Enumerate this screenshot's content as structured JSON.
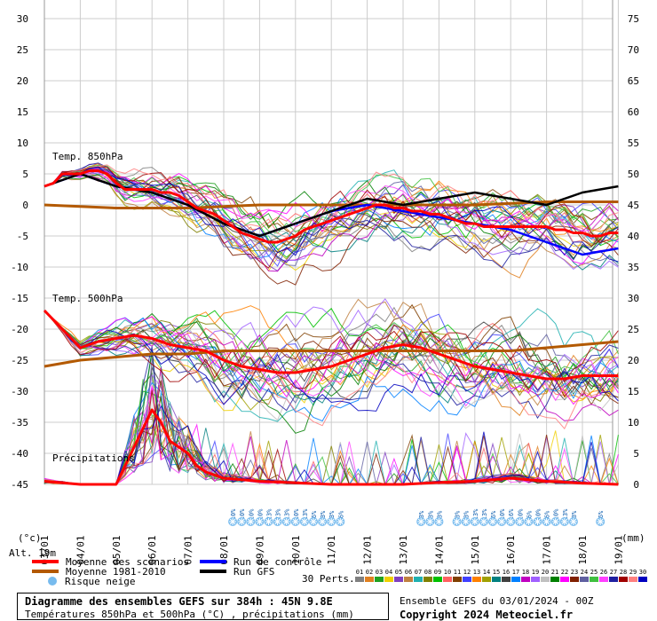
{
  "chart_data": {
    "type": "line",
    "x_ticks": [
      "03/01",
      "04/01",
      "05/01",
      "06/01",
      "07/01",
      "08/01",
      "09/01",
      "10/01",
      "11/01",
      "12/01",
      "13/01",
      "14/01",
      "15/01",
      "16/01",
      "17/01",
      "18/01",
      "19/01"
    ],
    "y_left_ticks": [
      "30",
      "25",
      "20",
      "15",
      "10",
      "5",
      "0",
      "-5",
      "-10",
      "-15",
      "-20",
      "-25",
      "-30",
      "-35",
      "-40",
      "-45"
    ],
    "y_right_ticks": [
      "75",
      "70",
      "65",
      "60",
      "55",
      "50",
      "45",
      "40",
      "35",
      "30",
      "25",
      "20",
      "15",
      "10",
      "5",
      "0"
    ],
    "ylim_left": [
      -45,
      30
    ],
    "ylim_right": [
      0,
      75
    ],
    "grid": true,
    "xlabel": "",
    "ylabel_left": "(°c)",
    "ylabel_right": "(mm)",
    "alt_label": "Alt. 19m",
    "panel_labels": {
      "t850": "Temp. 850hPa",
      "t500": "Temp. 500hPa",
      "precip": "Précipitations"
    },
    "snow_risk": [
      {
        "day": 5.25,
        "pct": "10%"
      },
      {
        "day": 5.5,
        "pct": "10%"
      },
      {
        "day": 5.75,
        "pct": "10%"
      },
      {
        "day": 6.0,
        "pct": "10%"
      },
      {
        "day": 6.25,
        "pct": "23%"
      },
      {
        "day": 6.5,
        "pct": "23%"
      },
      {
        "day": 6.75,
        "pct": "13%"
      },
      {
        "day": 7.0,
        "pct": "10%"
      },
      {
        "day": 7.25,
        "pct": "13%"
      },
      {
        "day": 7.5,
        "pct": "6%"
      },
      {
        "day": 7.75,
        "pct": "3%"
      },
      {
        "day": 8.0,
        "pct": "3%"
      },
      {
        "day": 8.25,
        "pct": "6%"
      },
      {
        "day": 10.5,
        "pct": "3%"
      },
      {
        "day": 10.75,
        "pct": "3%"
      },
      {
        "day": 11.0,
        "pct": "3%"
      },
      {
        "day": 11.5,
        "pct": "3%"
      },
      {
        "day": 11.75,
        "pct": "3%"
      },
      {
        "day": 12.0,
        "pct": "13%"
      },
      {
        "day": 12.25,
        "pct": "13%"
      },
      {
        "day": 12.5,
        "pct": "6%"
      },
      {
        "day": 12.75,
        "pct": "10%"
      },
      {
        "day": 13.0,
        "pct": "16%"
      },
      {
        "day": 13.25,
        "pct": "10%"
      },
      {
        "day": 13.5,
        "pct": "6%"
      },
      {
        "day": 13.75,
        "pct": "10%"
      },
      {
        "day": 14.0,
        "pct": "6%"
      },
      {
        "day": 14.25,
        "pct": "10%"
      },
      {
        "day": 14.5,
        "pct": "13%"
      },
      {
        "day": 14.75,
        "pct": "3%"
      },
      {
        "day": 15.5,
        "pct": "6%"
      }
    ],
    "series": [
      {
        "name": "Moyenne des scénarios",
        "color": "#ff0000",
        "panel": "t850",
        "x": [
          0,
          0.25,
          0.5,
          0.75,
          1,
          1.25,
          1.5,
          1.75,
          2,
          2.25,
          2.5,
          2.75,
          3,
          3.25,
          3.5,
          3.75,
          4,
          4.25,
          4.5,
          4.75,
          5,
          5.25,
          5.5,
          5.75,
          6,
          6.25,
          6.5,
          6.75,
          7,
          7.25,
          7.5,
          7.75,
          8,
          8.25,
          8.5,
          8.75,
          9,
          9.25,
          9.5,
          9.75,
          10,
          10.25,
          10.5,
          10.75,
          11,
          11.25,
          11.5,
          11.75,
          12,
          12.25,
          12.5,
          12.75,
          13,
          13.25,
          13.5,
          13.75,
          14,
          14.25,
          14.5,
          14.75,
          15,
          15.25,
          15.5,
          15.75,
          16
        ],
        "y": [
          3,
          3.5,
          5,
          5,
          5,
          5.5,
          5.5,
          5,
          3.5,
          2.5,
          2.5,
          2.5,
          2.5,
          2,
          2,
          1.5,
          0.5,
          -0.5,
          -1,
          -1.5,
          -2.5,
          -3.5,
          -4.5,
          -5,
          -5.5,
          -6,
          -6,
          -5.5,
          -5,
          -4,
          -3.5,
          -3,
          -2.5,
          -2,
          -1.5,
          -1,
          -0.5,
          0,
          0,
          -0.5,
          -0.5,
          -1,
          -1,
          -1.5,
          -1.5,
          -2,
          -2.5,
          -3,
          -3,
          -3.5,
          -3.5,
          -3.5,
          -3.5,
          -3.5,
          -3.5,
          -3.5,
          -3.5,
          -4,
          -4,
          -4.5,
          -4.5,
          -5,
          -5,
          -4.5,
          -4.5
        ]
      },
      {
        "name": "Moyenne 1981-2010",
        "color": "#b35900",
        "panel": "t850",
        "x": [
          0,
          2,
          4,
          6,
          8,
          10,
          12,
          14,
          16
        ],
        "y": [
          0,
          -0.5,
          -0.5,
          0,
          0,
          0,
          0,
          0.5,
          0.5
        ]
      },
      {
        "name": "Run de contrôle",
        "color": "#0000ff",
        "panel": "t850",
        "x": [
          0,
          1,
          2,
          3,
          4,
          5,
          6,
          7,
          8,
          9,
          10,
          11,
          12,
          13,
          14,
          15,
          16
        ],
        "y": [
          3,
          5,
          3,
          2,
          0,
          -3,
          -5,
          -3,
          -1,
          0,
          -1,
          -2,
          -3,
          -4,
          -6,
          -8,
          -7
        ]
      },
      {
        "name": "Run GFS",
        "color": "#000000",
        "panel": "t850",
        "x": [
          0,
          1,
          2,
          3,
          4,
          5,
          6,
          7,
          8,
          9,
          10,
          11,
          12,
          13,
          14,
          15,
          16
        ],
        "y": [
          3,
          5,
          3,
          2,
          0,
          -3,
          -5,
          -3,
          -1,
          1,
          0,
          1,
          2,
          1,
          0,
          2,
          3
        ]
      },
      {
        "name": "Moyenne des scénarios",
        "color": "#ff0000",
        "panel": "t500",
        "x": [
          0,
          0.5,
          1,
          1.5,
          2,
          2.5,
          3,
          3.5,
          4,
          4.5,
          5,
          5.5,
          6,
          6.5,
          7,
          7.5,
          8,
          8.5,
          9,
          9.5,
          10,
          10.5,
          11,
          11.5,
          12,
          12.5,
          13,
          13.5,
          14,
          14.5,
          15,
          15.5,
          16
        ],
        "y": [
          -17,
          -20,
          -23,
          -22,
          -21.5,
          -21,
          -21.5,
          -22.5,
          -23,
          -23.5,
          -25,
          -26,
          -26.5,
          -27,
          -27,
          -26.5,
          -26,
          -25,
          -24,
          -23,
          -22.5,
          -23,
          -24,
          -25,
          -26,
          -26.5,
          -27,
          -27.5,
          -28,
          -28,
          -27.5,
          -27.5,
          -27.5
        ]
      },
      {
        "name": "Moyenne 1981-2010",
        "color": "#b35900",
        "panel": "t500",
        "x": [
          0,
          1,
          2,
          3,
          4,
          5,
          6,
          7,
          8,
          9,
          10,
          11,
          12,
          13,
          14,
          15,
          16
        ],
        "y": [
          -26,
          -25,
          -24.5,
          -24,
          -24,
          -23.5,
          -23.5,
          -23.5,
          -23.5,
          -23.5,
          -23.5,
          -23.5,
          -23.5,
          -23.5,
          -23,
          -22.5,
          -22
        ]
      },
      {
        "name": "Moyenne des scénarios",
        "color": "#ff0000",
        "panel": "precip",
        "x": [
          0,
          1,
          2,
          2.25,
          2.5,
          2.75,
          3,
          3.25,
          3.5,
          3.75,
          4,
          4.25,
          4.5,
          5,
          6,
          8,
          10,
          11,
          12,
          13,
          14,
          15,
          16
        ],
        "y": [
          0.5,
          0,
          0,
          3,
          6,
          9,
          12,
          10,
          7,
          6,
          5,
          3,
          2,
          1,
          0.5,
          0,
          0,
          0.3,
          0.5,
          1,
          0.5,
          0.2,
          0
        ]
      }
    ],
    "legend": [
      {
        "label": "Moyenne des scénarios",
        "color": "#ff0000"
      },
      {
        "label": "Moyenne 1981-2010",
        "color": "#b35900"
      },
      {
        "label": "Risque neige",
        "color": "#77bbee"
      },
      {
        "label": "Run de contrôle",
        "color": "#0000ff"
      },
      {
        "label": "Run GFS",
        "color": "#000000"
      }
    ],
    "perts_label": "30 Perts.",
    "perts": [
      "01",
      "02",
      "03",
      "04",
      "05",
      "06",
      "07",
      "08",
      "09",
      "10",
      "11",
      "12",
      "13",
      "14",
      "15",
      "16",
      "17",
      "18",
      "19",
      "20",
      "21",
      "22",
      "23",
      "24",
      "25",
      "26",
      "27",
      "28",
      "29",
      "30"
    ],
    "pert_colors": [
      "#808080",
      "#e08020",
      "#20a020",
      "#f0d000",
      "#8040c0",
      "#c08040",
      "#20b0b0",
      "#808000",
      "#00c000",
      "#ff6060",
      "#804000",
      "#4040ff",
      "#ff8000",
      "#a0a000",
      "#008080",
      "#404040",
      "#0080ff",
      "#c000c0",
      "#a060ff",
      "#c0c0c0",
      "#008000",
      "#ff00ff",
      "#802000",
      "#6060a0",
      "#40c040",
      "#ff40ff",
      "#2020a0",
      "#a00000",
      "#ff8080",
      "#0000c0"
    ]
  },
  "footer": {
    "title": "Diagramme des ensembles GEFS sur 384h : 45N 9.8E",
    "subtitle": "Températures 850hPa et 500hPa (°C) , précipitations (mm)",
    "run": "Ensemble GEFS du 03/01/2024 - 00Z",
    "copyright": "Copyright 2024 Meteociel.fr"
  }
}
